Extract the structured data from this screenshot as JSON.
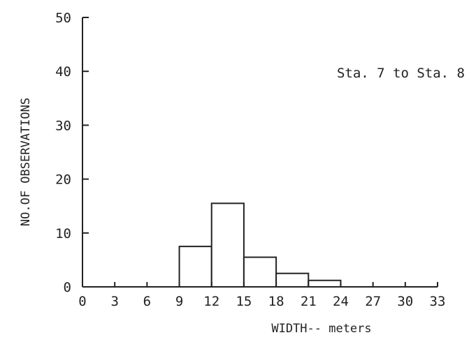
{
  "chart_data": {
    "type": "bar",
    "subtype": "histogram",
    "bin_edges": [
      0,
      3,
      6,
      9,
      12,
      15,
      18,
      21,
      24,
      27,
      30,
      33
    ],
    "values": [
      0,
      0,
      0,
      7.5,
      15.5,
      5.5,
      2.5,
      1.2,
      0,
      0,
      0
    ],
    "x_ticks": [
      "0",
      "3",
      "6",
      "9",
      "12",
      "15",
      "18",
      "21",
      "24",
      "27",
      "30",
      "33"
    ],
    "y_ticks": [
      "0",
      "10",
      "20",
      "30",
      "40",
      "50"
    ],
    "xlim": [
      0,
      33
    ],
    "ylim": [
      0,
      50
    ],
    "xlabel": "WIDTH-- meters",
    "ylabel": "NO.OF OBSERVATIONS",
    "annotation": "Sta. 7 to Sta. 8",
    "grid": false,
    "colors": {
      "ink": "#222222",
      "fill": "#ffffff"
    }
  }
}
